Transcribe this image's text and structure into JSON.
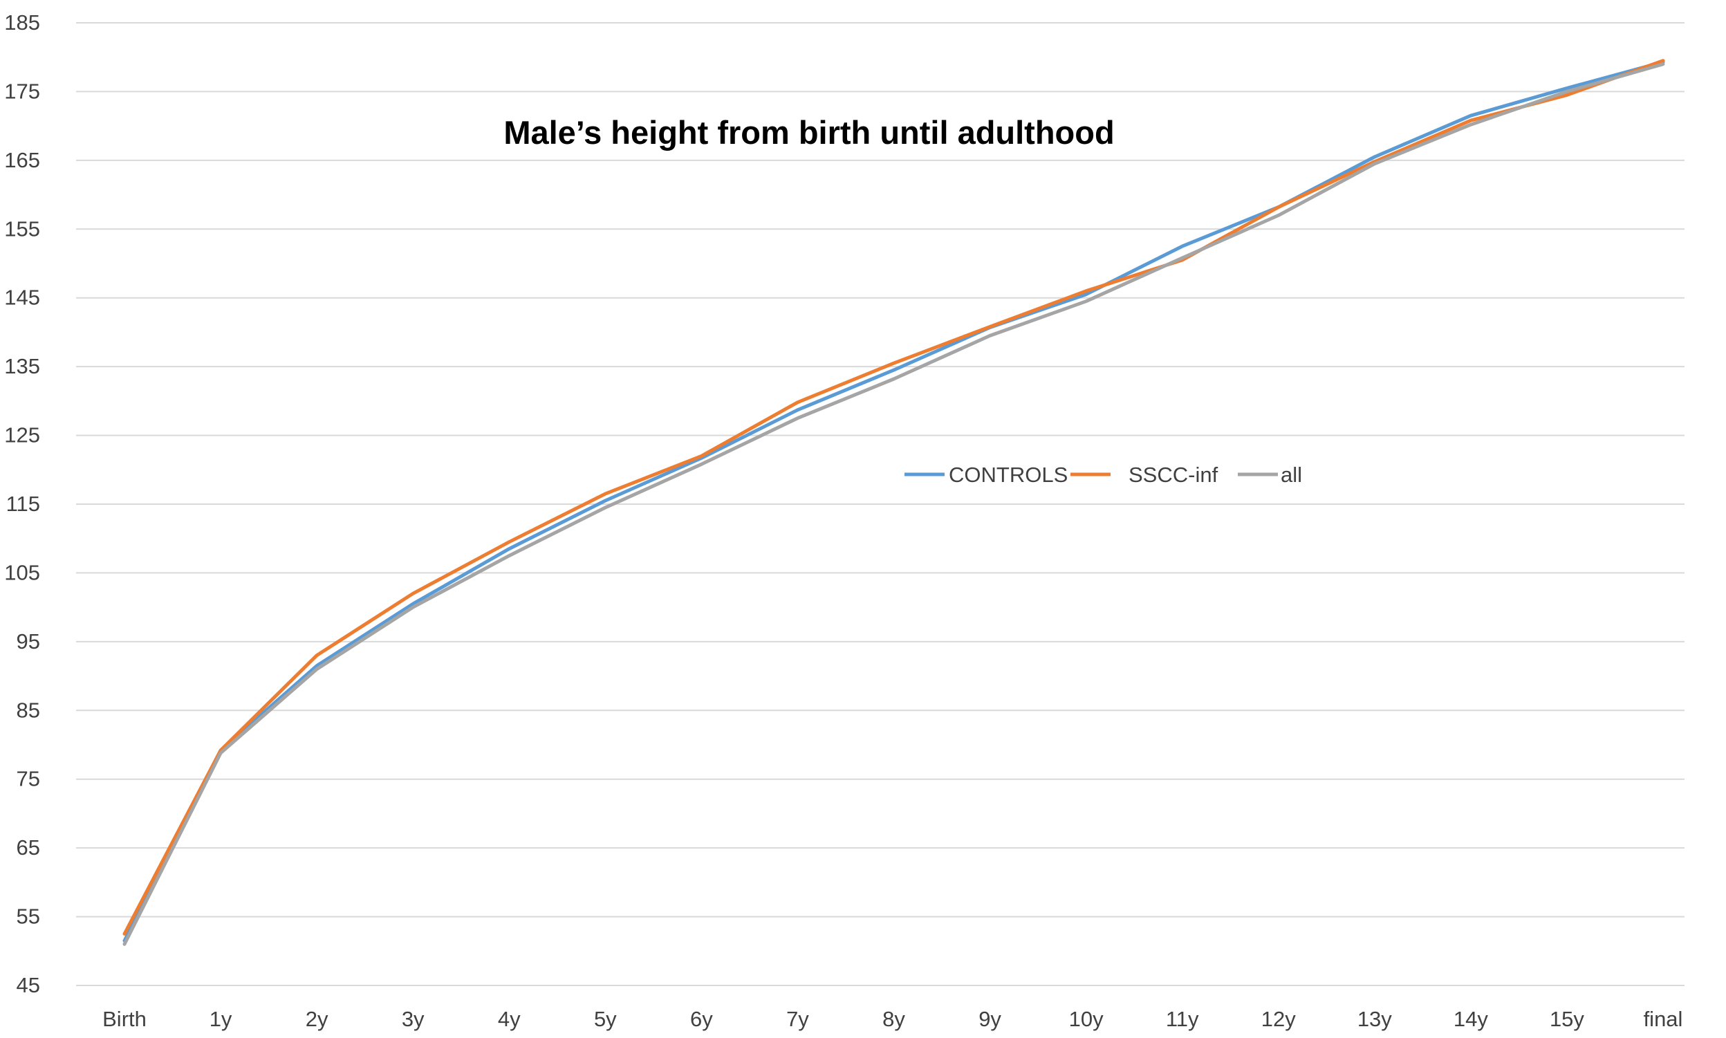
{
  "chart_data": {
    "type": "line",
    "title": "Male’s height from birth until adulthood",
    "xlabel": "",
    "ylabel": "",
    "categories": [
      "Birth",
      "1y",
      "2y",
      "3y",
      "4y",
      "5y",
      "6y",
      "7y",
      "8y",
      "9y",
      "10y",
      "11y",
      "12y",
      "13y",
      "14y",
      "15y",
      "final"
    ],
    "y_ticks": [
      45,
      55,
      65,
      75,
      85,
      95,
      105,
      115,
      125,
      135,
      145,
      155,
      165,
      175,
      185
    ],
    "ylim": [
      45,
      185
    ],
    "grid": true,
    "legend_position": "center-right",
    "series": [
      {
        "name": "CONTROLS",
        "color": "#5b9bd5",
        "values": [
          51.5,
          79.2,
          91.5,
          100.5,
          108.5,
          115.5,
          121.7,
          128.7,
          134.5,
          140.7,
          145.5,
          152.5,
          158.2,
          165.5,
          171.5,
          175.5,
          179.3
        ]
      },
      {
        "name": "SSCC-inf",
        "color": "#ed7d31",
        "values": [
          52.5,
          79.2,
          93.0,
          102.0,
          109.5,
          116.5,
          122.0,
          129.8,
          135.5,
          140.8,
          146.0,
          150.5,
          158.2,
          164.8,
          170.8,
          174.5,
          179.5
        ]
      },
      {
        "name": "all",
        "color": "#a5a5a5",
        "values": [
          51.0,
          78.8,
          91.0,
          100.0,
          107.5,
          114.5,
          120.8,
          127.5,
          133.2,
          139.5,
          144.5,
          150.8,
          157.0,
          164.5,
          170.2,
          175.0,
          179.0
        ]
      }
    ]
  }
}
